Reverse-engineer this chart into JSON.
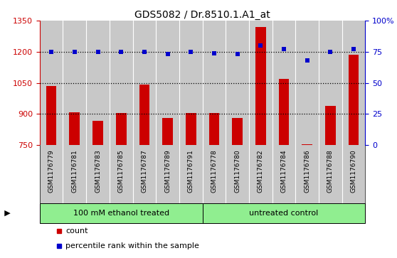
{
  "title": "GDS5082 / Dr.8510.1.A1_at",
  "samples": [
    "GSM1176779",
    "GSM1176781",
    "GSM1176783",
    "GSM1176785",
    "GSM1176787",
    "GSM1176789",
    "GSM1176791",
    "GSM1176778",
    "GSM1176780",
    "GSM1176782",
    "GSM1176784",
    "GSM1176786",
    "GSM1176788",
    "GSM1176790"
  ],
  "counts": [
    1035,
    908,
    868,
    903,
    1040,
    880,
    905,
    905,
    882,
    1320,
    1068,
    754,
    940,
    1185
  ],
  "percentiles": [
    75,
    75,
    75,
    75,
    75,
    73,
    75,
    74,
    73,
    80,
    77,
    68,
    75,
    77
  ],
  "group1_label": "100 mM ethanol treated",
  "group2_label": "untreated control",
  "group1_count": 7,
  "group2_count": 7,
  "ylim_left": [
    750,
    1350
  ],
  "ylim_right": [
    0,
    100
  ],
  "yticks_left": [
    750,
    900,
    1050,
    1200,
    1350
  ],
  "yticks_right": [
    0,
    25,
    50,
    75,
    100
  ],
  "right_tick_labels": [
    "0",
    "25",
    "50",
    "75",
    "100%"
  ],
  "bar_color": "#cc0000",
  "dot_color": "#0000cc",
  "group_bg_color": "#c8c8c8",
  "protocol_bg_color": "#90ee90",
  "bg_color": "#ffffff",
  "gridline_color": "#000000",
  "border_color": "#000000"
}
